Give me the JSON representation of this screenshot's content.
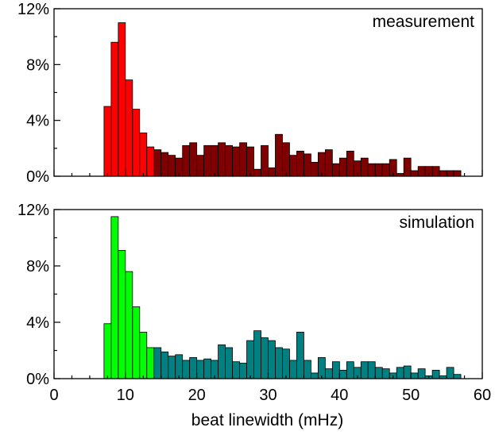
{
  "chart_data": [
    {
      "type": "bar",
      "label": "measurement",
      "xlim": [
        0,
        60
      ],
      "ylim": [
        0,
        12
      ],
      "y_ticks": [
        "0%",
        "4%",
        "8%",
        "12%"
      ],
      "bin_width": 1,
      "series": [
        {
          "color": "#ff0000",
          "x": [
            7,
            8,
            9,
            10,
            11,
            12,
            13,
            14
          ],
          "values": [
            5.0,
            9.6,
            11.0,
            6.9,
            4.8,
            3.1,
            2.1,
            0
          ]
        },
        {
          "color": "#800000",
          "x": [
            14,
            15,
            16,
            17,
            18,
            19,
            20,
            21,
            22,
            23,
            24,
            25,
            26,
            27,
            28,
            29,
            30,
            31,
            32,
            33,
            34,
            35,
            36,
            37,
            38,
            39,
            40,
            41,
            42,
            43,
            44,
            45,
            46,
            47,
            48,
            49,
            50,
            51,
            52,
            53,
            54,
            55,
            56,
            57,
            58,
            59
          ],
          "values": [
            1.9,
            1.7,
            1.5,
            1.3,
            2.2,
            2.4,
            1.5,
            2.2,
            2.2,
            2.4,
            2.2,
            2.1,
            2.4,
            2.1,
            0.5,
            2.2,
            0.6,
            3.0,
            2.4,
            1.5,
            1.8,
            1.6,
            1.0,
            1.7,
            1.9,
            0.9,
            1.3,
            1.8,
            1.1,
            1.3,
            0.9,
            0.9,
            0.9,
            1.2,
            0.2,
            1.3,
            0.4,
            0.7,
            0.7,
            0.7,
            0.4,
            0.4,
            0.4,
            0,
            0,
            0
          ]
        }
      ]
    },
    {
      "type": "bar",
      "label": "simulation",
      "xlim": [
        0,
        60
      ],
      "ylim": [
        0,
        12
      ],
      "y_ticks": [
        "0%",
        "4%",
        "8%",
        "12%"
      ],
      "x_ticks": [
        "0",
        "10",
        "20",
        "30",
        "40",
        "50",
        "60"
      ],
      "xlabel": "beat linewidth (mHz)",
      "bin_width": 1,
      "series": [
        {
          "color": "#00ff00",
          "x": [
            7,
            8,
            9,
            10,
            11,
            12,
            13,
            14
          ],
          "values": [
            3.9,
            11.5,
            9.1,
            7.6,
            5.1,
            3.3,
            2.2,
            0
          ]
        },
        {
          "color": "#008080",
          "x": [
            14,
            15,
            16,
            17,
            18,
            19,
            20,
            21,
            22,
            23,
            24,
            25,
            26,
            27,
            28,
            29,
            30,
            31,
            32,
            33,
            34,
            35,
            36,
            37,
            38,
            39,
            40,
            41,
            42,
            43,
            44,
            45,
            46,
            47,
            48,
            49,
            50,
            51,
            52,
            53,
            54,
            55,
            56,
            57,
            58,
            59
          ],
          "values": [
            2.2,
            1.9,
            1.6,
            1.7,
            1.3,
            1.5,
            1.3,
            1.4,
            1.3,
            2.4,
            2.2,
            1.2,
            1.1,
            2.7,
            3.4,
            2.9,
            2.7,
            2.2,
            2.1,
            1.3,
            3.3,
            1.3,
            0.4,
            1.5,
            0.7,
            1.2,
            0.6,
            1.2,
            0.8,
            1.2,
            1.2,
            0.8,
            0.7,
            0.4,
            0.8,
            0.9,
            0.4,
            0.7,
            0.2,
            0.6,
            0.2,
            0.8,
            0.3,
            0,
            0,
            0
          ]
        }
      ]
    }
  ]
}
